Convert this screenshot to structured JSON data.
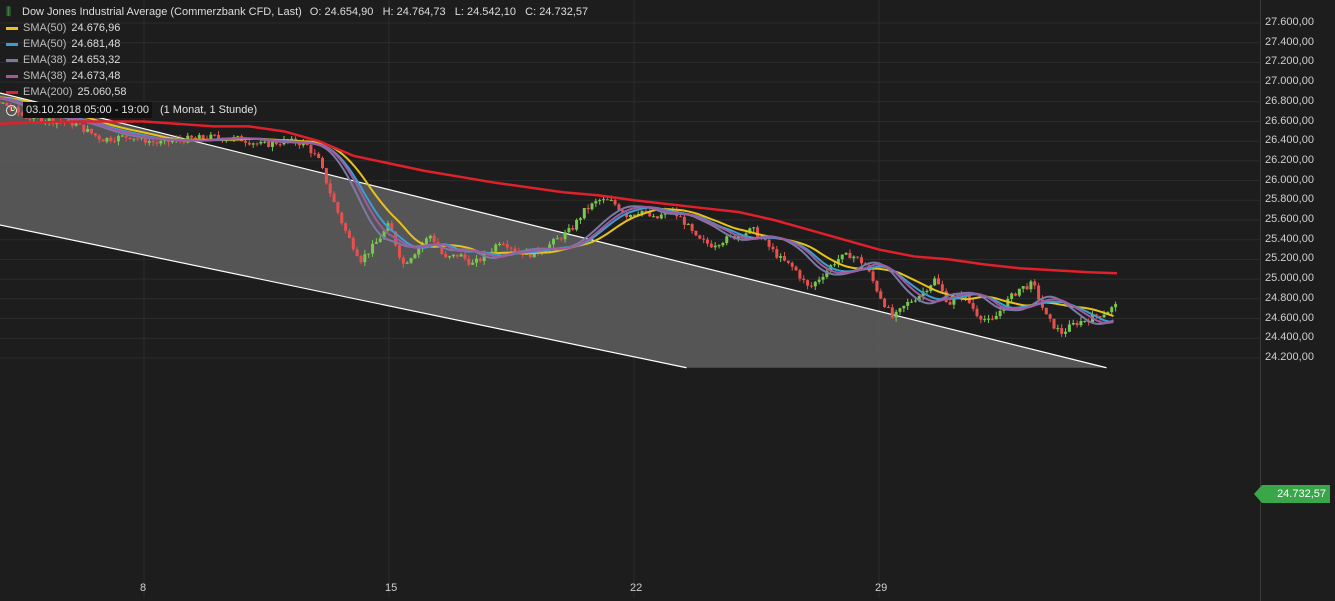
{
  "title": {
    "instrument": "Dow Jones Industrial Average (Commerzbank CFD, Last)",
    "open_label": "O:",
    "open": "24.654,90",
    "high_label": "H:",
    "high": "24.764,73",
    "low_label": "L:",
    "low": "24.542,10",
    "close_label": "C:",
    "close": "24.732,57"
  },
  "indicators": [
    {
      "label": "SMA(50)",
      "value": "24.676,96",
      "color": "#e8c21a"
    },
    {
      "label": "EMA(50)",
      "value": "24.681,48",
      "color": "#3a9fd0"
    },
    {
      "label": "EMA(38)",
      "value": "24.653,32",
      "color": "#7a7aa5"
    },
    {
      "label": "SMA(38)",
      "value": "24.673,48",
      "color": "#a05aa0"
    },
    {
      "label": "EMA(200)",
      "value": "25.060,58",
      "color": "#e0202a"
    }
  ],
  "time": {
    "range": "03.10.2018 05:00 - 19:00",
    "period": "(1 Monat, 1 Stunde)"
  },
  "last_price": "24.732,57",
  "colors": {
    "up": "#78c850",
    "down": "#e85050",
    "channel_fill": "#5a5959",
    "channel_line": "#ffffff"
  },
  "chart_data": {
    "type": "candlestick",
    "y_ticks": [
      "27.600,00",
      "27.400,00",
      "27.200,00",
      "27.000,00",
      "26.800,00",
      "26.600,00",
      "26.400,00",
      "26.200,00",
      "26.000,00",
      "25.800,00",
      "25.600,00",
      "25.400,00",
      "25.200,00",
      "25.000,00",
      "24.800,00",
      "24.600,00",
      "24.400,00",
      "24.200,00"
    ],
    "x_ticks": [
      "8",
      "15",
      "22",
      "29"
    ],
    "ylim": [
      24100,
      27700
    ],
    "channel": {
      "upper": {
        "start": {
          "x": 3.2,
          "y": 26950
        },
        "end": {
          "x": 35.5,
          "y": 24100
        }
      },
      "lower": {
        "start": {
          "x": 3.2,
          "y": 25600
        },
        "end": {
          "x": 23.5,
          "y": 24100
        }
      }
    },
    "price_path": [
      {
        "x": 2.1,
        "y": 26850
      },
      {
        "x": 3.0,
        "y": 26900
      },
      {
        "x": 3.2,
        "y": 26780
      },
      {
        "x": 4.0,
        "y": 26780
      },
      {
        "x": 4.6,
        "y": 26650
      },
      {
        "x": 5.2,
        "y": 26620
      },
      {
        "x": 6.0,
        "y": 26580
      },
      {
        "x": 6.8,
        "y": 26420
      },
      {
        "x": 7.6,
        "y": 26450
      },
      {
        "x": 8.4,
        "y": 26380
      },
      {
        "x": 9.2,
        "y": 26420
      },
      {
        "x": 10.0,
        "y": 26440
      },
      {
        "x": 10.8,
        "y": 26420
      },
      {
        "x": 11.4,
        "y": 26360
      },
      {
        "x": 12.0,
        "y": 26400
      },
      {
        "x": 12.6,
        "y": 26380
      },
      {
        "x": 13.0,
        "y": 26200
      },
      {
        "x": 13.4,
        "y": 25800
      },
      {
        "x": 13.8,
        "y": 25450
      },
      {
        "x": 14.2,
        "y": 25200
      },
      {
        "x": 14.6,
        "y": 25350
      },
      {
        "x": 15.0,
        "y": 25550
      },
      {
        "x": 15.4,
        "y": 25150
      },
      {
        "x": 15.8,
        "y": 25300
      },
      {
        "x": 16.2,
        "y": 25450
      },
      {
        "x": 16.6,
        "y": 25200
      },
      {
        "x": 17.0,
        "y": 25250
      },
      {
        "x": 17.4,
        "y": 25150
      },
      {
        "x": 17.8,
        "y": 25250
      },
      {
        "x": 18.2,
        "y": 25400
      },
      {
        "x": 18.6,
        "y": 25300
      },
      {
        "x": 19.0,
        "y": 25250
      },
      {
        "x": 19.4,
        "y": 25300
      },
      {
        "x": 19.8,
        "y": 25400
      },
      {
        "x": 20.2,
        "y": 25500
      },
      {
        "x": 20.6,
        "y": 25700
      },
      {
        "x": 21.0,
        "y": 25800
      },
      {
        "x": 21.4,
        "y": 25780
      },
      {
        "x": 21.8,
        "y": 25650
      },
      {
        "x": 22.2,
        "y": 25700
      },
      {
        "x": 22.6,
        "y": 25600
      },
      {
        "x": 23.0,
        "y": 25700
      },
      {
        "x": 23.4,
        "y": 25600
      },
      {
        "x": 23.8,
        "y": 25400
      },
      {
        "x": 24.2,
        "y": 25350
      },
      {
        "x": 24.6,
        "y": 25400
      },
      {
        "x": 25.0,
        "y": 25450
      },
      {
        "x": 25.4,
        "y": 25500
      },
      {
        "x": 25.8,
        "y": 25350
      },
      {
        "x": 26.2,
        "y": 25200
      },
      {
        "x": 26.6,
        "y": 25100
      },
      {
        "x": 27.0,
        "y": 24900
      },
      {
        "x": 27.4,
        "y": 25050
      },
      {
        "x": 27.8,
        "y": 25200
      },
      {
        "x": 28.2,
        "y": 25250
      },
      {
        "x": 28.6,
        "y": 25150
      },
      {
        "x": 29.0,
        "y": 24850
      },
      {
        "x": 29.4,
        "y": 24600
      },
      {
        "x": 29.8,
        "y": 24750
      },
      {
        "x": 30.2,
        "y": 24850
      },
      {
        "x": 30.6,
        "y": 25000
      },
      {
        "x": 31.0,
        "y": 24750
      },
      {
        "x": 31.4,
        "y": 24850
      },
      {
        "x": 31.8,
        "y": 24650
      },
      {
        "x": 32.2,
        "y": 24550
      },
      {
        "x": 32.6,
        "y": 24750
      },
      {
        "x": 33.0,
        "y": 24900
      },
      {
        "x": 33.4,
        "y": 24950
      },
      {
        "x": 33.8,
        "y": 24600
      },
      {
        "x": 34.2,
        "y": 24450
      },
      {
        "x": 34.6,
        "y": 24550
      },
      {
        "x": 35.0,
        "y": 24600
      },
      {
        "x": 35.4,
        "y": 24650
      },
      {
        "x": 35.8,
        "y": 24733
      }
    ],
    "ema200": [
      {
        "x": 2.1,
        "y": 26500
      },
      {
        "x": 4.0,
        "y": 26580
      },
      {
        "x": 6.0,
        "y": 26600
      },
      {
        "x": 8.0,
        "y": 26600
      },
      {
        "x": 10.0,
        "y": 26550
      },
      {
        "x": 11.0,
        "y": 26550
      },
      {
        "x": 12.0,
        "y": 26500
      },
      {
        "x": 13.0,
        "y": 26400
      },
      {
        "x": 14.0,
        "y": 26250
      },
      {
        "x": 16.0,
        "y": 26100
      },
      {
        "x": 18.0,
        "y": 25980
      },
      {
        "x": 20.0,
        "y": 25880
      },
      {
        "x": 21.0,
        "y": 25850
      },
      {
        "x": 22.0,
        "y": 25800
      },
      {
        "x": 24.0,
        "y": 25720
      },
      {
        "x": 25.0,
        "y": 25680
      },
      {
        "x": 26.0,
        "y": 25600
      },
      {
        "x": 27.0,
        "y": 25500
      },
      {
        "x": 28.0,
        "y": 25400
      },
      {
        "x": 29.0,
        "y": 25300
      },
      {
        "x": 30.0,
        "y": 25230
      },
      {
        "x": 31.0,
        "y": 25200
      },
      {
        "x": 32.0,
        "y": 25150
      },
      {
        "x": 33.0,
        "y": 25110
      },
      {
        "x": 34.0,
        "y": 25090
      },
      {
        "x": 35.0,
        "y": 25070
      },
      {
        "x": 35.8,
        "y": 25060
      }
    ]
  }
}
